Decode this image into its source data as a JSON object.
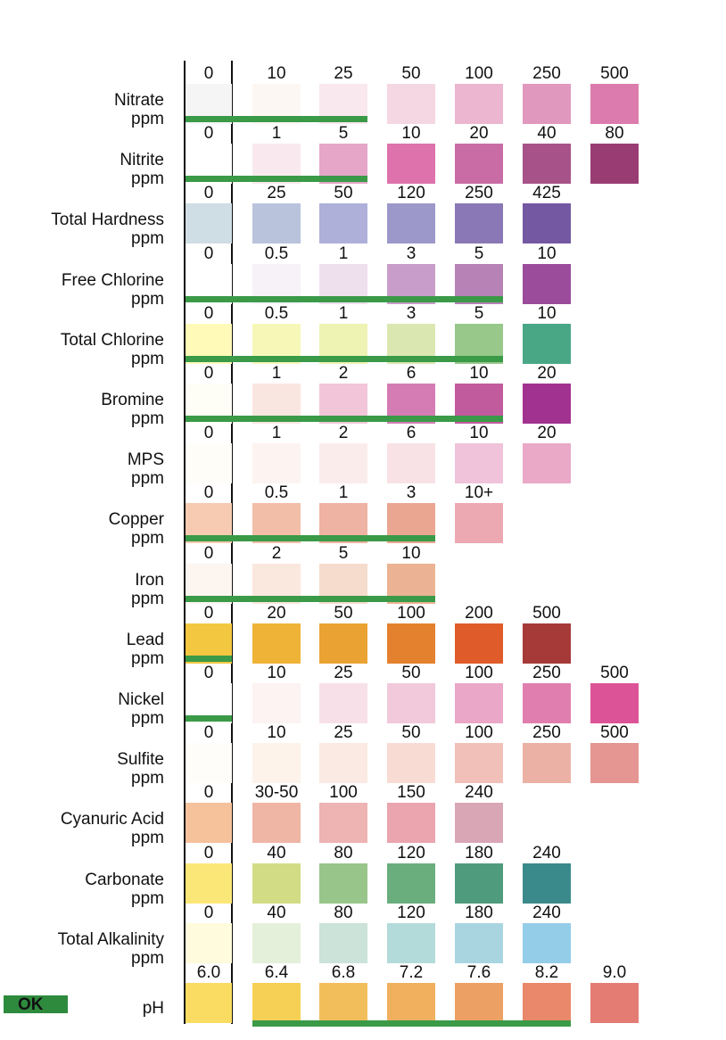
{
  "rows": [
    {
      "name": "Nitrate",
      "unit": "ppm",
      "bar_from": 0,
      "bar_to": 2,
      "cells": [
        {
          "v": "0",
          "c": "#f5f5f5"
        },
        {
          "v": "10",
          "c": "#fdf7f4"
        },
        {
          "v": "25",
          "c": "#f9e8ee"
        },
        {
          "v": "50",
          "c": "#f5d7e3"
        },
        {
          "v": "100",
          "c": "#ecb6d0"
        },
        {
          "v": "250",
          "c": "#e198bf"
        },
        {
          "v": "500",
          "c": "#dc7cae"
        }
      ]
    },
    {
      "name": "Nitrite",
      "unit": "ppm",
      "bar_from": 0,
      "bar_to": 2,
      "cells": [
        {
          "v": "0",
          "c": "#ffffff"
        },
        {
          "v": "1",
          "c": "#f9e9ef"
        },
        {
          "v": "5",
          "c": "#e5a6c8"
        },
        {
          "v": "10",
          "c": "#de72ac"
        },
        {
          "v": "20",
          "c": "#c96ca5"
        },
        {
          "v": "40",
          "c": "#a75288"
        },
        {
          "v": "80",
          "c": "#9a3c74"
        }
      ]
    },
    {
      "name": "Total Hardness",
      "unit": "ppm",
      "bar_from": null,
      "bar_to": null,
      "cells": [
        {
          "v": "0",
          "c": "#cfdde4"
        },
        {
          "v": "25",
          "c": "#b9c3dc"
        },
        {
          "v": "50",
          "c": "#aeb0da"
        },
        {
          "v": "120",
          "c": "#9c98ca"
        },
        {
          "v": "250",
          "c": "#8a78b6"
        },
        {
          "v": "425",
          "c": "#7558a2"
        }
      ]
    },
    {
      "name": "Free Chlorine",
      "unit": "ppm",
      "bar_from": 0,
      "bar_to": 4,
      "cells": [
        {
          "v": "0",
          "c": "#ffffff"
        },
        {
          "v": "0.5",
          "c": "#f7f2f8"
        },
        {
          "v": "1",
          "c": "#efe0ee"
        },
        {
          "v": "3",
          "c": "#c99dc9"
        },
        {
          "v": "5",
          "c": "#b782b6"
        },
        {
          "v": "10",
          "c": "#9b4c9b"
        }
      ]
    },
    {
      "name": "Total Chlorine",
      "unit": "ppm",
      "bar_from": 0,
      "bar_to": 4,
      "cells": [
        {
          "v": "0",
          "c": "#fffab8"
        },
        {
          "v": "0.5",
          "c": "#f7f8b8"
        },
        {
          "v": "1",
          "c": "#eef3b3"
        },
        {
          "v": "3",
          "c": "#dbe7b1"
        },
        {
          "v": "5",
          "c": "#98c88a"
        },
        {
          "v": "10",
          "c": "#4aa786"
        }
      ]
    },
    {
      "name": "Bromine",
      "unit": "ppm",
      "bar_from": 0,
      "bar_to": 4,
      "cells": [
        {
          "v": "0",
          "c": "#fefdf6"
        },
        {
          "v": "1",
          "c": "#fae6e1"
        },
        {
          "v": "2",
          "c": "#f2c6d8"
        },
        {
          "v": "6",
          "c": "#d57cb4"
        },
        {
          "v": "10",
          "c": "#c25a9e"
        },
        {
          "v": "20",
          "c": "#a23290"
        }
      ]
    },
    {
      "name": "MPS",
      "unit": "ppm",
      "bar_from": null,
      "bar_to": null,
      "cells": [
        {
          "v": "0",
          "c": "#fefdf8"
        },
        {
          "v": "1",
          "c": "#fdf4f1"
        },
        {
          "v": "2",
          "c": "#fbecec"
        },
        {
          "v": "6",
          "c": "#f8e2e5"
        },
        {
          "v": "10",
          "c": "#f0c3da"
        },
        {
          "v": "20",
          "c": "#eaa9c6"
        }
      ]
    },
    {
      "name": "Copper",
      "unit": "ppm",
      "bar_from": 0,
      "bar_to": 3,
      "cells": [
        {
          "v": "0",
          "c": "#f6cbb1"
        },
        {
          "v": "0.5",
          "c": "#f2bea8"
        },
        {
          "v": "1",
          "c": "#eeb3a2"
        },
        {
          "v": "3",
          "c": "#eba692"
        },
        {
          "v": "10+",
          "c": "#eda9b1"
        }
      ]
    },
    {
      "name": "Iron",
      "unit": "ppm",
      "bar_from": 0,
      "bar_to": 3,
      "cells": [
        {
          "v": "0",
          "c": "#fcf5f0"
        },
        {
          "v": "2",
          "c": "#fae7de"
        },
        {
          "v": "5",
          "c": "#f6dccd"
        },
        {
          "v": "10",
          "c": "#ebb393"
        }
      ]
    },
    {
      "name": "Lead",
      "unit": "ppm",
      "bar_from": 0,
      "bar_to": 0,
      "cells": [
        {
          "v": "0",
          "c": "#f4c741"
        },
        {
          "v": "20",
          "c": "#efb338"
        },
        {
          "v": "50",
          "c": "#eaa233"
        },
        {
          "v": "100",
          "c": "#e4812e"
        },
        {
          "v": "200",
          "c": "#df5c2a"
        },
        {
          "v": "500",
          "c": "#a53a38"
        }
      ]
    },
    {
      "name": "Nickel",
      "unit": "ppm",
      "bar_from": 0,
      "bar_to": 0,
      "cells": [
        {
          "v": "0",
          "c": "#ffffff"
        },
        {
          "v": "10",
          "c": "#fdf3f3"
        },
        {
          "v": "25",
          "c": "#f8e0e9"
        },
        {
          "v": "50",
          "c": "#f2c8db"
        },
        {
          "v": "100",
          "c": "#eaa7c7"
        },
        {
          "v": "250",
          "c": "#e07faf"
        },
        {
          "v": "500",
          "c": "#dc5497"
        }
      ]
    },
    {
      "name": "Sulfite",
      "unit": "ppm",
      "bar_from": null,
      "bar_to": null,
      "cells": [
        {
          "v": "0",
          "c": "#fffdf9"
        },
        {
          "v": "10",
          "c": "#fdf3ea"
        },
        {
          "v": "25",
          "c": "#fbe9e3"
        },
        {
          "v": "50",
          "c": "#f8dcd4"
        },
        {
          "v": "100",
          "c": "#f1c0b9"
        },
        {
          "v": "250",
          "c": "#ecb1a5"
        },
        {
          "v": "500",
          "c": "#e59592"
        }
      ]
    },
    {
      "name": "Cyanuric Acid",
      "unit": "ppm",
      "bar_from": null,
      "bar_to": null,
      "cells": [
        {
          "v": "0",
          "c": "#f5c29c"
        },
        {
          "v": "30-50",
          "c": "#f0b6a5"
        },
        {
          "v": "100",
          "c": "#eeb3b3"
        },
        {
          "v": "150",
          "c": "#eaa5ae"
        },
        {
          "v": "240",
          "c": "#d9a6b6"
        }
      ]
    },
    {
      "name": "Carbonate",
      "unit": "ppm",
      "bar_from": null,
      "bar_to": null,
      "cells": [
        {
          "v": "0",
          "c": "#fbe778"
        },
        {
          "v": "40",
          "c": "#d2dc85"
        },
        {
          "v": "80",
          "c": "#98c68a"
        },
        {
          "v": "120",
          "c": "#6aae7e"
        },
        {
          "v": "180",
          "c": "#4f9b7d"
        },
        {
          "v": "240",
          "c": "#3b8a8b"
        }
      ]
    },
    {
      "name": "Total Alkalinity",
      "unit": "ppm",
      "bar_from": null,
      "bar_to": null,
      "cells": [
        {
          "v": "0",
          "c": "#fffbdc"
        },
        {
          "v": "40",
          "c": "#e5f0da"
        },
        {
          "v": "80",
          "c": "#cbe3d9"
        },
        {
          "v": "120",
          "c": "#b3dbd9"
        },
        {
          "v": "180",
          "c": "#a9d5e1"
        },
        {
          "v": "240",
          "c": "#94cde8"
        }
      ]
    },
    {
      "name": "pH",
      "unit": "",
      "bar_from": 1,
      "bar_to": 5,
      "cells": [
        {
          "v": "6.0",
          "c": "#fadc63"
        },
        {
          "v": "6.4",
          "c": "#f6d054"
        },
        {
          "v": "6.8",
          "c": "#f2be5c"
        },
        {
          "v": "7.2",
          "c": "#f0b05e"
        },
        {
          "v": "7.6",
          "c": "#eda063"
        },
        {
          "v": "8.2",
          "c": "#e9886a"
        },
        {
          "v": "9.0",
          "c": "#e47c73"
        }
      ]
    }
  ],
  "ok_label": "OK",
  "colors": {
    "bar": "#3a9a47",
    "ok_badge": "#2e8b3e"
  }
}
